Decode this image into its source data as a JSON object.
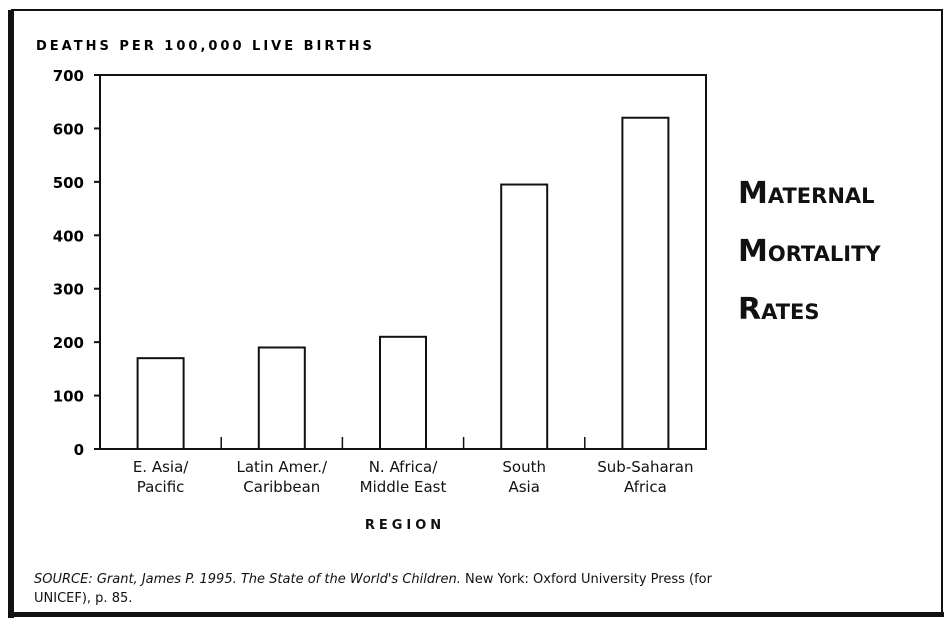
{
  "chart_data": {
    "type": "bar",
    "title": "Maternal\nMortality\nRates",
    "y_label": "DEATHS PER 100,000 LIVE BIRTHS",
    "x_label": "REGION",
    "categories": [
      "E. Asia/\nPacific",
      "Latin Amer./\nCaribbean",
      "N. Africa/\nMiddle East",
      "South\nAsia",
      "Sub-Saharan\nAfrica"
    ],
    "values": [
      170,
      190,
      210,
      495,
      620
    ],
    "color": "#ffffff",
    "ylim": [
      0,
      700
    ],
    "yticks": [
      0,
      100,
      200,
      300,
      400,
      500,
      600,
      700
    ],
    "source": [
      "SOURCE:  Grant, James P. 1995. ",
      "The State of the World's Children.",
      " New York: Oxford University Press (for UNICEF), p. 85."
    ]
  }
}
